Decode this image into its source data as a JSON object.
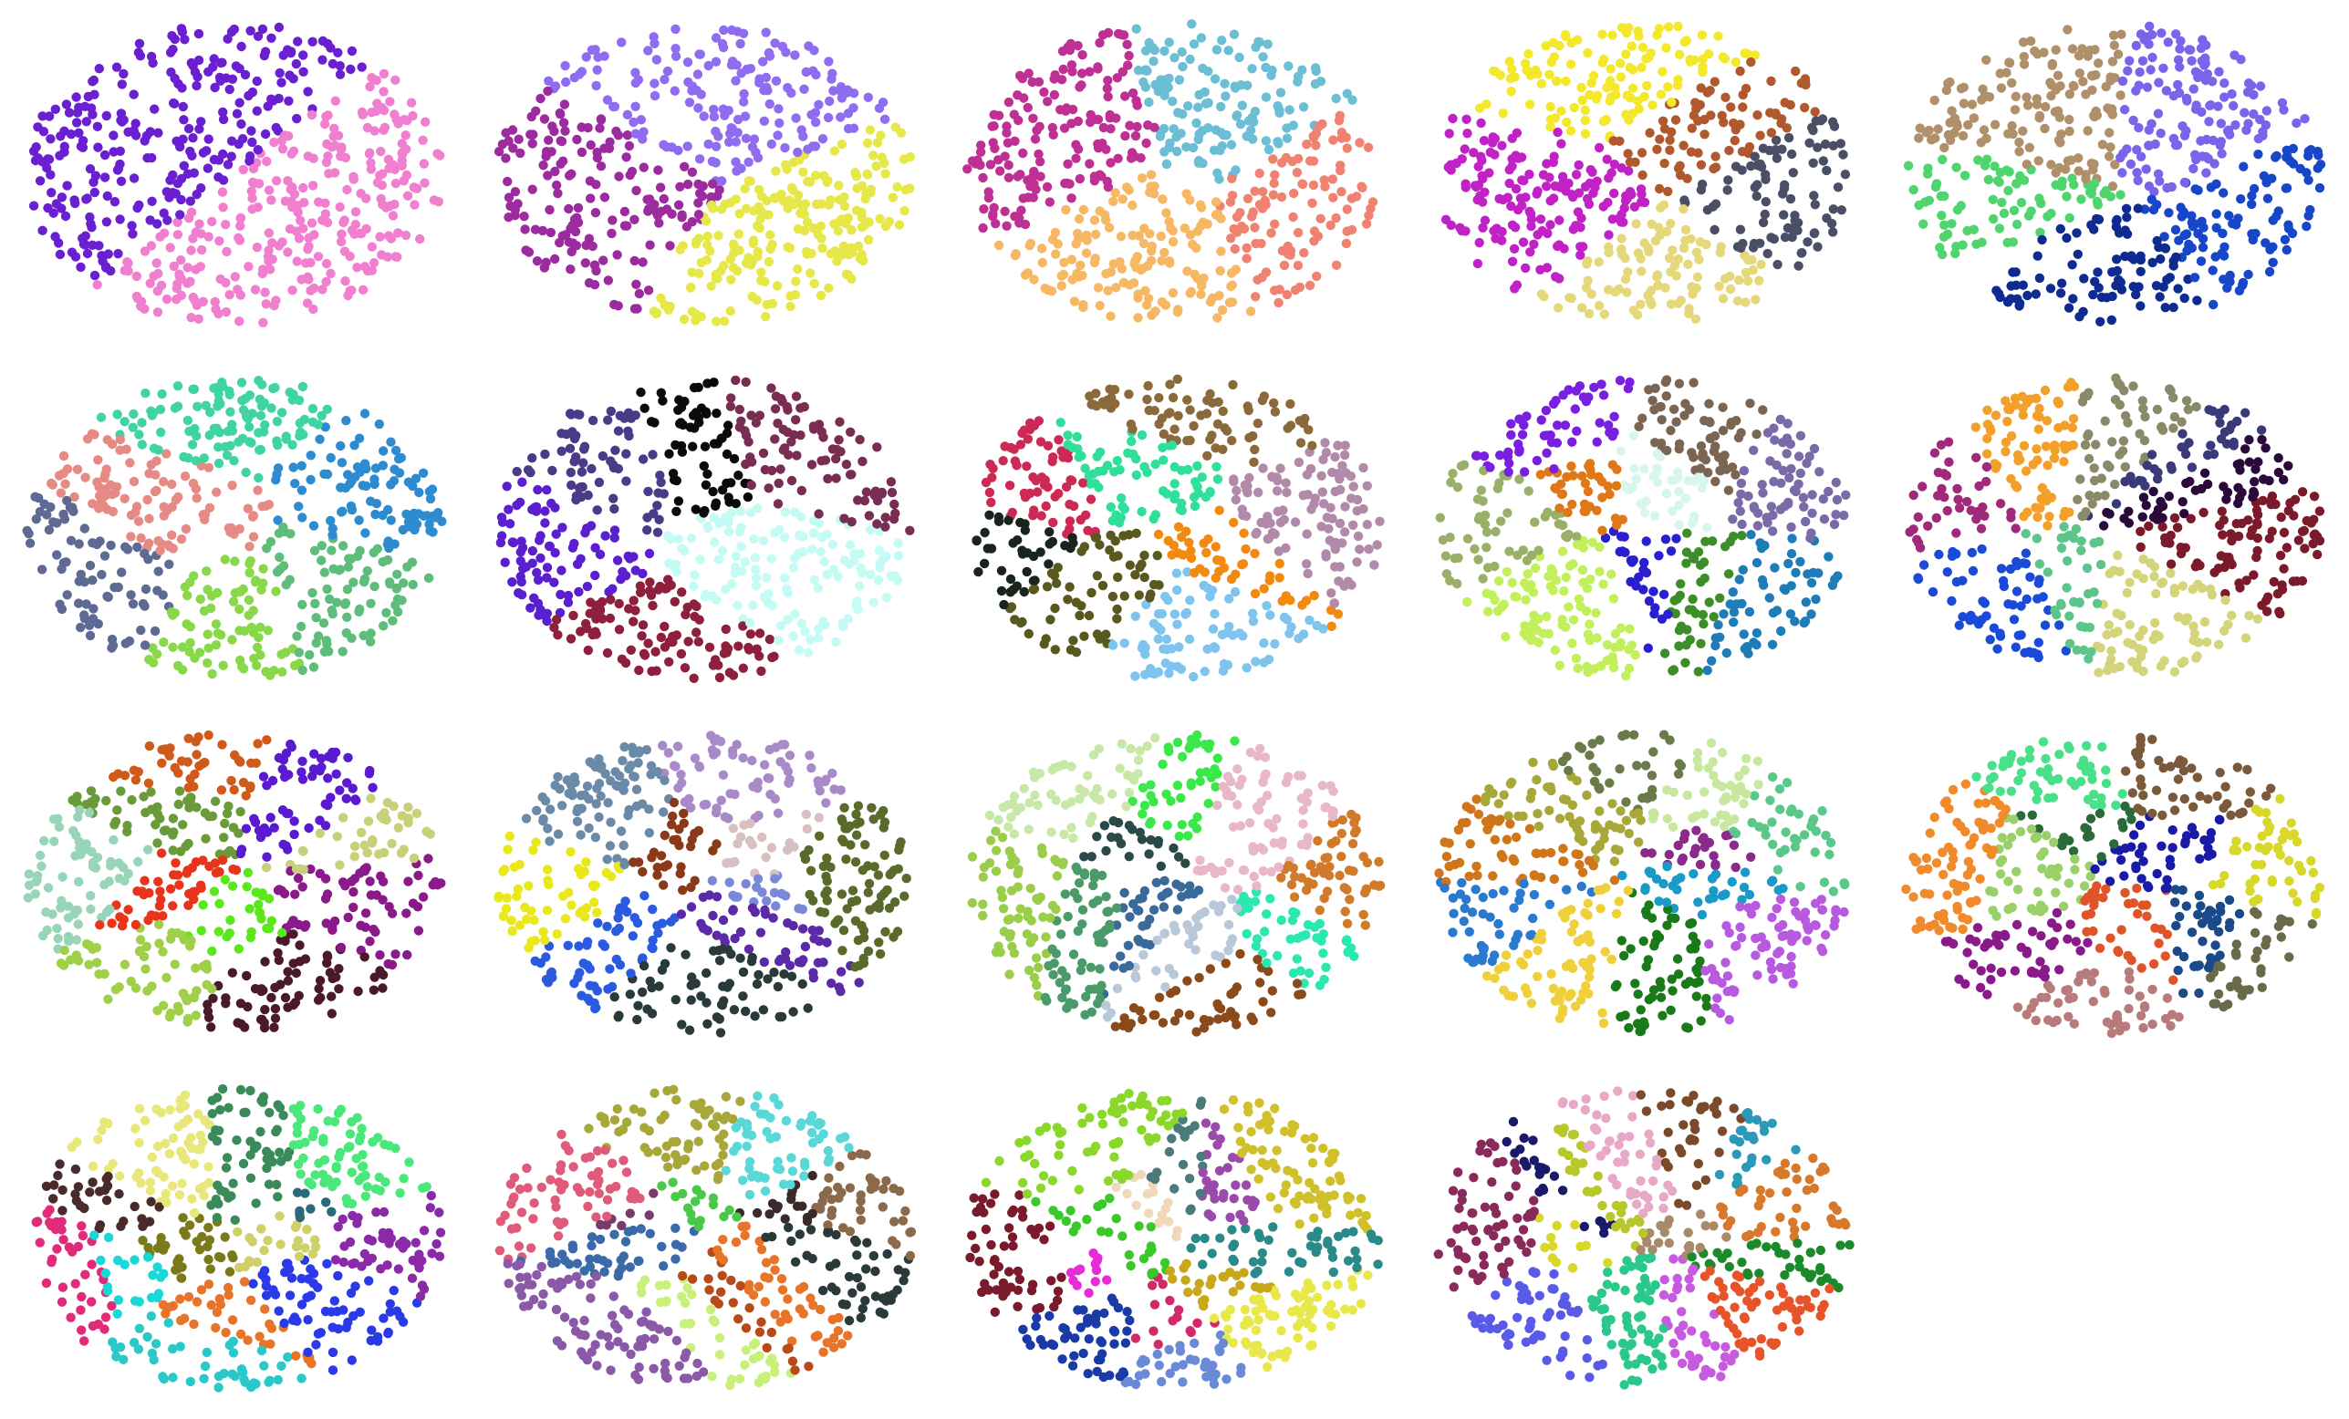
{
  "figure": {
    "rows": 4,
    "cols": 5,
    "panel_count": 19
  },
  "chart_data": [
    {
      "type": "scatter",
      "panel": 1,
      "cluster_colors": [
        "#f07fcf",
        "#6a1fd0"
      ]
    },
    {
      "type": "scatter",
      "panel": 2,
      "cluster_colors": [
        "#e6e84a",
        "#9b2b9f",
        "#8f6cf0"
      ]
    },
    {
      "type": "scatter",
      "panel": 3,
      "cluster_colors": [
        "#ef8270",
        "#f6b865",
        "#be3094",
        "#6bbed4"
      ]
    },
    {
      "type": "scatter",
      "panel": 4,
      "cluster_colors": [
        "#4b4f66",
        "#e5d87a",
        "#c022c6",
        "#f4e82c",
        "#b0592e"
      ]
    },
    {
      "type": "scatter",
      "panel": 5,
      "cluster_colors": [
        "#1747c8",
        "#102b8f",
        "#4fd46e",
        "#b0906a",
        "#7a64ea"
      ]
    },
    {
      "type": "scatter",
      "panel": 6,
      "cluster_colors": [
        "#5ebd7a",
        "#88d84a",
        "#5e6a94",
        "#e58a85",
        "#3fd4a2",
        "#2e8bd0"
      ]
    },
    {
      "type": "scatter",
      "panel": 7,
      "cluster_colors": [
        "#c4fbf5",
        "#8e1f3d",
        "#5a1fcf",
        "#4a3a88",
        "#0a0a0a",
        "#7a2d52"
      ]
    },
    {
      "type": "scatter",
      "panel": 8,
      "cluster_colors": [
        "#f28a10",
        "#7ec4ee",
        "#59581f",
        "#cc2a55",
        "#18241c",
        "#30e09a",
        "#8a6a3a",
        "#b08aa8"
      ]
    },
    {
      "type": "scatter",
      "panel": 9,
      "cluster_colors": [
        "#3c8f28",
        "#1e7db8",
        "#2a1fd0",
        "#c2f05a",
        "#9ab068",
        "#7a1ee0",
        "#e07818",
        "#7a6452",
        "#d8f5ee",
        "#7a6aa8"
      ]
    },
    {
      "type": "scatter",
      "panel": 10,
      "cluster_colors": [
        "#7a1a2a",
        "#d4d47a",
        "#5dc48a",
        "#1a4ad8",
        "#a02a7a",
        "#f2a02a",
        "#3a3a7a",
        "#8a8a6a",
        "#2a0a3a"
      ]
    },
    {
      "type": "scatter",
      "panel": 11,
      "cluster_colors": [
        "#8a1a8a",
        "#4a1a2a",
        "#5ae81a",
        "#a0d04a",
        "#e8341a",
        "#98d4b8",
        "#6a9a3a",
        "#d05a1a",
        "#5a1ad0",
        "#c8d07a"
      ]
    },
    {
      "type": "scatter",
      "panel": 12,
      "cluster_colors": [
        "#7a88d8",
        "#5a2aa8",
        "#2a3a3a",
        "#2a5ae0",
        "#e8e81a",
        "#6a8aa8",
        "#8a3a1a",
        "#a88ac8",
        "#d8c0c0",
        "#5a6a2a"
      ]
    },
    {
      "type": "scatter",
      "panel": 13,
      "cluster_colors": [
        "#2ae8b0",
        "#b8c8d8",
        "#8a4a1a",
        "#3a6a9a",
        "#4a9a6a",
        "#9acd4a",
        "#c8e8a8",
        "#2a4a4a",
        "#3ae84a",
        "#e8b8c8",
        "#d07a2a"
      ]
    },
    {
      "type": "scatter",
      "panel": 14,
      "cluster_colors": [
        "#1a9ac8",
        "#b85ae0",
        "#1a7a1a",
        "#f0d03a",
        "#2a7ad0",
        "#d0761a",
        "#a8a83a",
        "#6a7a4a",
        "#c8e8a0",
        "#8a2a8a",
        "#5ac88a"
      ]
    },
    {
      "type": "scatter",
      "panel": 15,
      "cluster_colors": [
        "#6a6a4a",
        "#1a4a8a",
        "#e0542a",
        "#b87a7a",
        "#8a1a8a",
        "#9ad06a",
        "#f08a2a",
        "#2a6a3a",
        "#4ae08a",
        "#7a5a3a",
        "#1a1aa8",
        "#d8d82a"
      ]
    },
    {
      "type": "scatter",
      "panel": 16,
      "cluster_colors": [
        "#8a2aa8",
        "#2a3ae8",
        "#2ac8c8",
        "#e8742a",
        "#1ad8d8",
        "#e02a7a",
        "#7a7a1a",
        "#4a2a2a",
        "#e8e87a",
        "#3a8a5a",
        "#4ae87a",
        "#2a6a7a",
        "#d0d06a"
      ]
    },
    {
      "type": "scatter",
      "panel": 17,
      "cluster_colors": [
        "#2a3a3a",
        "#e8742a",
        "#b84a1a",
        "#c8f07a",
        "#8a5aa8",
        "#3a6aa8",
        "#e05a7a",
        "#7a3a6a",
        "#4ac84a",
        "#a8a83a",
        "#5ad8d8",
        "#3a2a2a",
        "#8a6a4a"
      ]
    },
    {
      "type": "scatter",
      "panel": 18,
      "cluster_colors": [
        "#e8e84a",
        "#c8a81a",
        "#d02a6a",
        "#6a8ad8",
        "#1a3aa8",
        "#e82ad8",
        "#7a1a2a",
        "#3ac82a",
        "#f0d8b8",
        "#8ad82a",
        "#4a7a7a",
        "#d0c02a",
        "#9a4aa8",
        "#2a8a8a"
      ]
    },
    {
      "type": "scatter",
      "panel": 19,
      "cluster_colors": [
        "#1a8a2a",
        "#e8542a",
        "#c85ae0",
        "#2ac88a",
        "#5a5ae8",
        "#d8d82a",
        "#8a2a5a",
        "#1a1a6a",
        "#b8c82a",
        "#e8a8c8",
        "#7a4a2a",
        "#2a9ab8",
        "#a88a6a",
        "#d8782a"
      ]
    }
  ]
}
